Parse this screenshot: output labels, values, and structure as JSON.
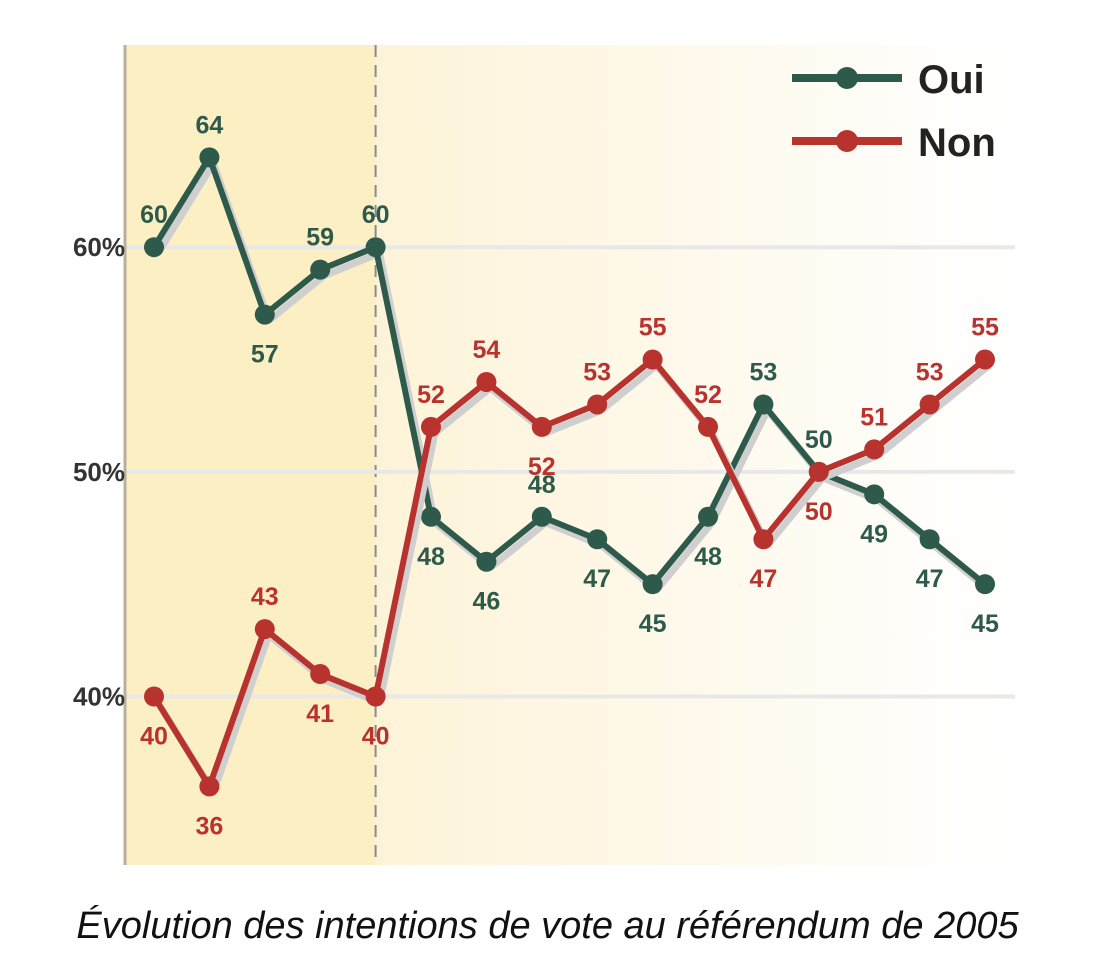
{
  "caption": "Évolution des intentions de vote au référendum de 2005",
  "colors": {
    "oui": "#2e5a4b",
    "non": "#b8322e",
    "panel_left": "#fcefc4",
    "panel_right": "#fdf6e2",
    "grid": "#e8e8e8"
  },
  "chart_data": {
    "type": "line",
    "x": [
      1,
      2,
      3,
      4,
      5,
      6,
      7,
      8,
      9,
      10,
      11,
      12,
      13,
      14,
      15,
      16
    ],
    "series": [
      {
        "name": "Oui",
        "values": [
          60,
          64,
          57,
          59,
          60,
          48,
          46,
          48,
          47,
          45,
          48,
          53,
          50,
          49,
          47,
          45
        ]
      },
      {
        "name": "Non",
        "values": [
          40,
          36,
          43,
          41,
          40,
          52,
          54,
          52,
          53,
          55,
          52,
          47,
          50,
          51,
          53,
          55
        ]
      }
    ],
    "yticks": [
      40,
      50,
      60
    ],
    "ytick_labels": [
      "40%",
      "50%",
      "60%"
    ],
    "ylim": [
      32.5,
      69
    ],
    "xlim": [
      0.5,
      16.5
    ],
    "vline_x": 5,
    "grid": true,
    "legend_position": "top-right"
  }
}
